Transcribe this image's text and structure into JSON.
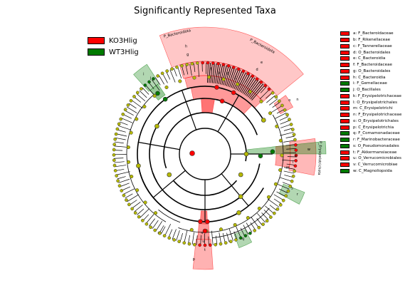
{
  "title": "Significantly Represented Taxa",
  "colors": {
    "KO3Hlig": "#ff0000",
    "WT3Hlig": "#007a00",
    "node": "#b5b800",
    "background": "#ffffff"
  },
  "group_legend": [
    {
      "label": "KO3Hlig",
      "color": "#ff0000"
    },
    {
      "label": "WT3Hlig",
      "color": "#007a00"
    }
  ],
  "taxa_legend": [
    {
      "code": "a",
      "label": "a: F_Bacteroidaceae",
      "color": "#ff0000"
    },
    {
      "code": "b",
      "label": "b: F_Rikenellaceae",
      "color": "#ff0000"
    },
    {
      "code": "c",
      "label": "c: F_Tannerellaceae",
      "color": "#ff0000"
    },
    {
      "code": "d",
      "label": "d: O_Bacteroidales",
      "color": "#ff0000"
    },
    {
      "code": "e",
      "label": "e: C_Bacteroidia",
      "color": "#ff0000"
    },
    {
      "code": "f",
      "label": "f: F_Bacteroidaceae",
      "color": "#ff0000"
    },
    {
      "code": "g",
      "label": "g: O_Bacteroidales",
      "color": "#ff0000"
    },
    {
      "code": "h",
      "label": "h: C_Bacteroidia",
      "color": "#ff0000"
    },
    {
      "code": "i",
      "label": "i: F_Gemellaceae",
      "color": "#007a00"
    },
    {
      "code": "j",
      "label": "j: O_Bacillales",
      "color": "#007a00"
    },
    {
      "code": "k",
      "label": "k: F_Erysipelotrichaceae",
      "color": "#ff0000"
    },
    {
      "code": "l",
      "label": "l: O_Erysipelotrichales",
      "color": "#ff0000"
    },
    {
      "code": "m",
      "label": "m: C_Erysipelotrichi",
      "color": "#ff0000"
    },
    {
      "code": "n",
      "label": "n: F_Erysipelotrichaceae",
      "color": "#ff0000"
    },
    {
      "code": "o",
      "label": "o: O_Erysipelotrichales",
      "color": "#ff0000"
    },
    {
      "code": "p",
      "label": "p: C_Erysipelotrichia",
      "color": "#ff0000"
    },
    {
      "code": "q",
      "label": "q: F_Comamonadaceae",
      "color": "#007a00"
    },
    {
      "code": "r",
      "label": "r: F_Marinobacteraceae",
      "color": "#007a00"
    },
    {
      "code": "s",
      "label": "s: O_Pseudomonadales",
      "color": "#007a00"
    },
    {
      "code": "t",
      "label": "t: F_Akkermansiaceae",
      "color": "#ff0000"
    },
    {
      "code": "u",
      "label": "u: O_Verrucomicrobiales",
      "color": "#ff0000"
    },
    {
      "code": "v",
      "label": "v: C_Verrucomicrobiae",
      "color": "#ff0000"
    },
    {
      "code": "w",
      "label": "w: C_Magnoliopsida",
      "color": "#007a00"
    }
  ],
  "clade_labels": {
    "bacteroidota_outer": "P_Bacteroidota",
    "bacteroidota_inner": "P_Bacteroidota",
    "erysipelotrichota": "P_Erysipelotrichota",
    "codes": {
      "h": "h",
      "g": "g",
      "e": "e",
      "d": "d",
      "f": "f",
      "a": "a",
      "b": "b",
      "c": "c",
      "i": "i",
      "j": "j",
      "w": "w",
      "k": "k",
      "l": "l",
      "m": "m",
      "r": "r",
      "s": "s",
      "q": "q",
      "t": "t",
      "u": "u",
      "v": "v",
      "n": "n",
      "o": "o",
      "p": "p"
    }
  }
}
